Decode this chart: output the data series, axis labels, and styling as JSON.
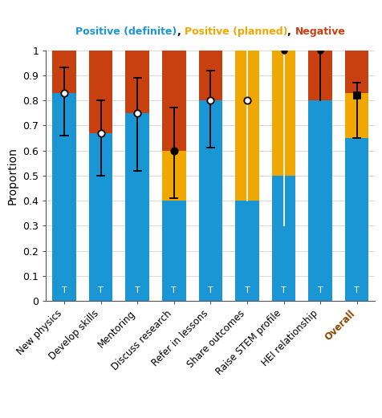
{
  "categories": [
    "New physics",
    "Develop skills",
    "Mentoring",
    "Discuss research",
    "Refer in lessons",
    "Share outcomes",
    "Raise STEM profile",
    "HEI relationship",
    "Overall"
  ],
  "positive_definite": [
    0.83,
    0.67,
    0.75,
    0.4,
    0.8,
    0.4,
    0.5,
    0.8,
    0.65
  ],
  "positive_planned": [
    0.0,
    0.0,
    0.0,
    0.2,
    0.0,
    0.6,
    0.5,
    0.0,
    0.18
  ],
  "negative": [
    0.17,
    0.33,
    0.25,
    0.4,
    0.2,
    0.0,
    0.0,
    0.2,
    0.17
  ],
  "error_center": [
    0.83,
    0.67,
    0.75,
    0.6,
    0.8,
    0.8,
    1.0,
    1.0,
    0.82
  ],
  "error_low": [
    0.66,
    0.5,
    0.52,
    0.41,
    0.61,
    0.4,
    0.3,
    0.8,
    0.65
  ],
  "error_high": [
    0.93,
    0.8,
    0.89,
    0.77,
    0.92,
    1.0,
    1.0,
    1.0,
    0.87
  ],
  "has_caps": [
    true,
    true,
    true,
    true,
    true,
    false,
    false,
    false,
    true
  ],
  "error_line_color": [
    "black",
    "black",
    "black",
    "black",
    "black",
    "white",
    "white",
    "black",
    "black"
  ],
  "error_marker": [
    "open_circle",
    "open_circle",
    "open_circle",
    "filled_circle",
    "open_circle",
    "open_circle",
    "filled_dot",
    "filled_dot",
    "filled_square"
  ],
  "color_positive_definite": "#1a96d4",
  "color_positive_planned": "#f0a800",
  "color_negative": "#c84010",
  "overall_label_color": "#8b4500",
  "ylabel": "Proportion",
  "yticks": [
    0,
    0.1,
    0.2,
    0.3,
    0.4,
    0.5,
    0.6,
    0.7,
    0.8,
    0.9,
    1
  ],
  "ytick_labels": [
    "0",
    "0.1",
    "0.2",
    "0.3",
    "0.4",
    "0.5",
    "0.6",
    "0.7",
    "0.8",
    "0.9",
    "1"
  ],
  "legend_labels": [
    "Positive (definite)",
    "Positive (planned)",
    "Negative"
  ],
  "legend_colors": [
    "#1a96d4",
    "#f0a800",
    "#c84010"
  ]
}
